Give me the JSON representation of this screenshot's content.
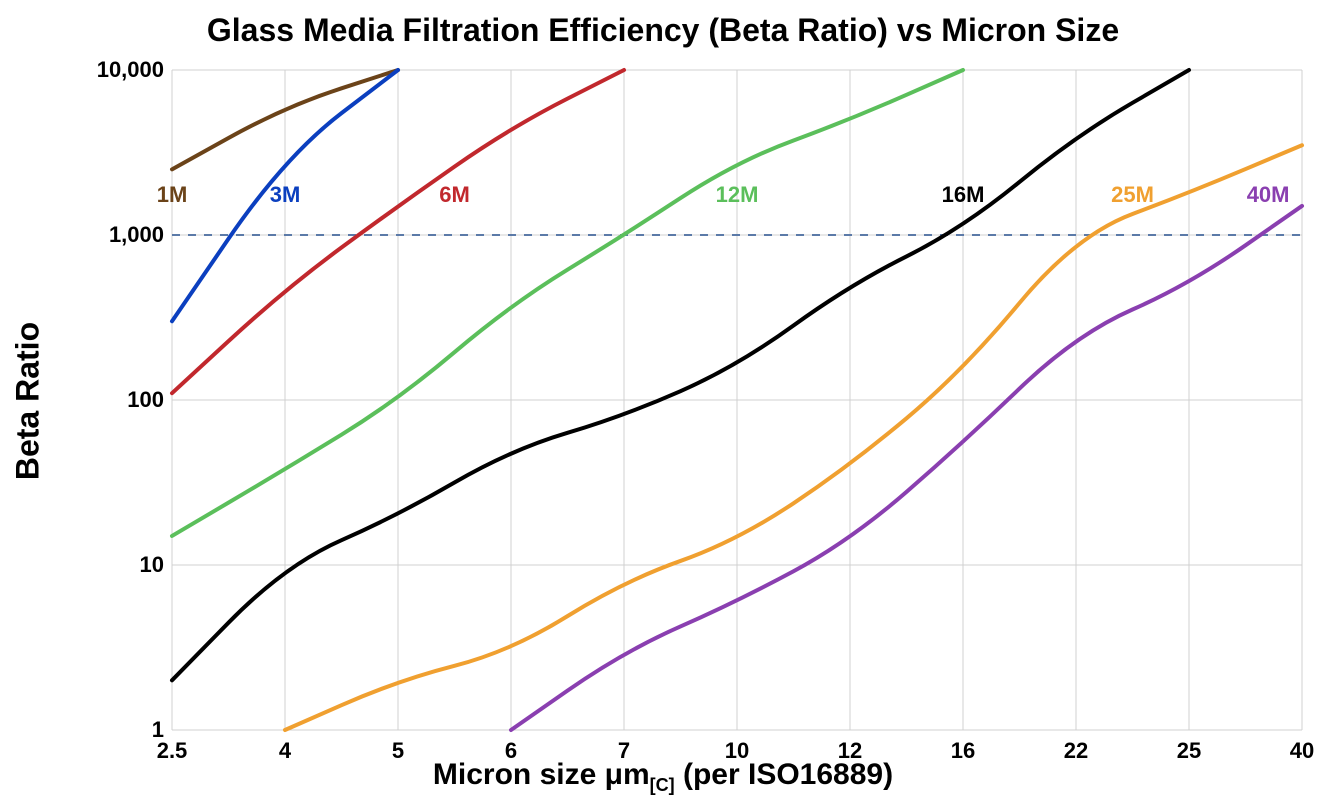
{
  "chart": {
    "type": "line",
    "title": "Glass Media Filtration Efficiency (Beta Ratio) vs Micron Size",
    "title_fontsize": 32,
    "title_fontweight": 700,
    "x_axis": {
      "label": "Micron size μm",
      "label_subscript": "[C]",
      "label_suffix": " (per ISO16889)",
      "label_fontsize": 30,
      "scale": "category",
      "ticks": [
        "2.5",
        "4",
        "5",
        "6",
        "7",
        "10",
        "12",
        "16",
        "22",
        "25",
        "40"
      ],
      "tick_fontsize": 22,
      "tick_fontweight": 700
    },
    "y_axis": {
      "label": "Beta Ratio",
      "label_fontsize": 32,
      "scale": "log",
      "range_min": 1,
      "range_max": 10000,
      "ticks": [
        1,
        10,
        100,
        1000,
        10000
      ],
      "tick_labels": [
        "1",
        "10",
        "100",
        "1,000",
        "10,000"
      ],
      "tick_fontsize": 22,
      "tick_fontweight": 700
    },
    "grid_color": "#d0d0d0",
    "grid_width": 1,
    "reference_line_y": 1000,
    "reference_line_color": "#5b7aa8",
    "reference_line_dash": "8,8",
    "reference_line_width": 2,
    "background_color": "#ffffff",
    "line_width": 4,
    "series": [
      {
        "name": "1M",
        "label": "1M",
        "color": "#6b4319",
        "label_at_index": 0,
        "label_y": 1750,
        "points": [
          {
            "xi": 0,
            "y": 2500
          },
          {
            "xi": 1,
            "y": 6000
          },
          {
            "xi": 2,
            "y": 10000
          }
        ]
      },
      {
        "name": "3M",
        "label": "3M",
        "color": "#0b3fbf",
        "label_at_index": 1,
        "label_y": 1750,
        "points": [
          {
            "xi": 0,
            "y": 300
          },
          {
            "xi": 1,
            "y": 3000
          },
          {
            "xi": 2,
            "y": 10000
          }
        ]
      },
      {
        "name": "6M",
        "label": "6M",
        "color": "#c1282d",
        "label_at_index": 2.5,
        "label_y": 1750,
        "points": [
          {
            "xi": 0,
            "y": 110
          },
          {
            "xi": 1,
            "y": 470
          },
          {
            "xi": 2,
            "y": 1500
          },
          {
            "xi": 3,
            "y": 4500
          },
          {
            "xi": 4,
            "y": 10000
          }
        ]
      },
      {
        "name": "12M",
        "label": "12M",
        "color": "#5bbf5b",
        "label_at_index": 5,
        "label_y": 1750,
        "points": [
          {
            "xi": 0,
            "y": 15
          },
          {
            "xi": 1,
            "y": 38
          },
          {
            "xi": 2,
            "y": 100
          },
          {
            "xi": 3,
            "y": 380
          },
          {
            "xi": 4,
            "y": 1000
          },
          {
            "xi": 5,
            "y": 2800
          },
          {
            "xi": 6,
            "y": 5000
          },
          {
            "xi": 7,
            "y": 10000
          }
        ]
      },
      {
        "name": "16M",
        "label": "16M",
        "color": "#000000",
        "label_at_index": 7,
        "label_y": 1750,
        "points": [
          {
            "xi": 0,
            "y": 2
          },
          {
            "xi": 1,
            "y": 10
          },
          {
            "xi": 2,
            "y": 20
          },
          {
            "xi": 3,
            "y": 50
          },
          {
            "xi": 4,
            "y": 80
          },
          {
            "xi": 5,
            "y": 160
          },
          {
            "xi": 6,
            "y": 500
          },
          {
            "xi": 7,
            "y": 1100
          },
          {
            "xi": 8,
            "y": 4000
          },
          {
            "xi": 9,
            "y": 10000
          }
        ]
      },
      {
        "name": "25M",
        "label": "25M",
        "color": "#f0a030",
        "label_at_index": 8.5,
        "label_y": 1750,
        "points": [
          {
            "xi": 1,
            "y": 1
          },
          {
            "xi": 2,
            "y": 2
          },
          {
            "xi": 3,
            "y": 3
          },
          {
            "xi": 4,
            "y": 8
          },
          {
            "xi": 5,
            "y": 14
          },
          {
            "xi": 6,
            "y": 40
          },
          {
            "xi": 7,
            "y": 150
          },
          {
            "xi": 8,
            "y": 1000
          },
          {
            "xi": 9,
            "y": 1800
          },
          {
            "xi": 10,
            "y": 3500
          }
        ]
      },
      {
        "name": "40M",
        "label": "40M",
        "color": "#8a3fb0",
        "label_at_index": 9.7,
        "label_y": 1750,
        "points": [
          {
            "xi": 3,
            "y": 1
          },
          {
            "xi": 4,
            "y": 3
          },
          {
            "xi": 5,
            "y": 6
          },
          {
            "xi": 6,
            "y": 14
          },
          {
            "xi": 7,
            "y": 55
          },
          {
            "xi": 8,
            "y": 250
          },
          {
            "xi": 9,
            "y": 500
          },
          {
            "xi": 10,
            "y": 1500
          }
        ]
      }
    ],
    "series_label_fontsize": 22,
    "series_label_fontweight": 700
  }
}
